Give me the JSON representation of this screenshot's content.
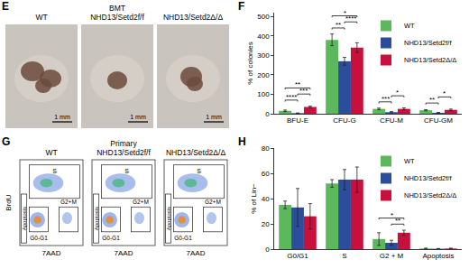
{
  "panel_E": {
    "letter": "E",
    "images": [
      {
        "header": [
          "WT"
        ],
        "scale_bar": "1 mm"
      },
      {
        "header": [
          "BMT",
          "NHD13/Setd2f/f"
        ],
        "scale_bar": "1 mm"
      },
      {
        "header": [
          "NHD13/Setd2Δ/Δ"
        ],
        "scale_bar": "1 mm"
      }
    ]
  },
  "panel_G": {
    "letter": "G",
    "y_label": "BrdU",
    "x_label": "7AAD",
    "gates": {
      "s": "S",
      "g2m": "G2+M",
      "g0g1": "G0-G1",
      "apoptosis": "Apoptosis"
    },
    "plots": [
      {
        "header": [
          "WT"
        ]
      },
      {
        "header": [
          "Primary",
          "NHD13/Setd2f/f"
        ]
      },
      {
        "header": [
          "NHD13/Setd2Δ/Δ"
        ]
      }
    ]
  },
  "chart_data": [
    {
      "panel": "F",
      "type": "bar",
      "y_label": "% of colonies",
      "categories": [
        "BFU-E",
        "CFU-G",
        "CFU-M",
        "CFU-GM"
      ],
      "ylim": [
        0,
        520
      ],
      "yticks": [
        0,
        100,
        200,
        300,
        400,
        500
      ],
      "grid": false,
      "legend": "top right",
      "series": [
        {
          "name": "WT",
          "color": "#5cb85c",
          "values": [
            15,
            380,
            25,
            18
          ],
          "errors": [
            4,
            30,
            4,
            3
          ]
        },
        {
          "name": "NHD13/Setd2f/f",
          "color": "#2b4d9b",
          "values": [
            3,
            270,
            8,
            5
          ],
          "errors": [
            1,
            20,
            3,
            2
          ]
        },
        {
          "name": "NHD13/Setd2Δ/Δ",
          "color": "#c8103c",
          "values": [
            35,
            340,
            25,
            20
          ],
          "errors": [
            4,
            25,
            5,
            4
          ]
        }
      ],
      "significance": [
        {
          "category": "BFU-E",
          "text": "****",
          "from": "WT",
          "to": "NHD13/Setd2f/f"
        },
        {
          "category": "BFU-E",
          "text": "***",
          "from": "NHD13/Setd2f/f",
          "to": "NHD13/Setd2Δ/Δ"
        },
        {
          "category": "BFU-E",
          "text": "**",
          "from": "WT",
          "to": "NHD13/Setd2Δ/Δ"
        },
        {
          "category": "CFU-G",
          "text": "**",
          "from": "WT",
          "to": "NHD13/Setd2f/f"
        },
        {
          "category": "CFU-G",
          "text": "****",
          "from": "NHD13/Setd2f/f",
          "to": "NHD13/Setd2Δ/Δ"
        },
        {
          "category": "CFU-G",
          "text": "*",
          "from": "WT",
          "to": "NHD13/Setd2Δ/Δ"
        },
        {
          "category": "CFU-M",
          "text": "***",
          "from": "WT",
          "to": "NHD13/Setd2f/f"
        },
        {
          "category": "CFU-M",
          "text": "*",
          "from": "NHD13/Setd2f/f",
          "to": "NHD13/Setd2Δ/Δ"
        },
        {
          "category": "CFU-GM",
          "text": "**",
          "from": "WT",
          "to": "NHD13/Setd2f/f"
        },
        {
          "category": "CFU-GM",
          "text": "*",
          "from": "NHD13/Setd2f/f",
          "to": "NHD13/Setd2Δ/Δ"
        }
      ]
    },
    {
      "panel": "H",
      "type": "bar",
      "y_label": "% of Lin−",
      "categories": [
        "G0/G1",
        "S",
        "G2 + M",
        "Apoptosis"
      ],
      "ylim": [
        0,
        80
      ],
      "yticks": [
        0,
        20,
        40,
        60,
        80
      ],
      "grid": false,
      "legend": "top right",
      "series": [
        {
          "name": "WT",
          "color": "#5cb85c",
          "values": [
            35,
            52,
            8,
            0.5
          ],
          "errors": [
            3,
            3,
            5,
            0.3
          ]
        },
        {
          "name": "NHD13/Setd2f/f",
          "color": "#2b4d9b",
          "values": [
            33,
            55,
            5,
            0.3
          ],
          "errors": [
            15,
            8,
            2,
            0.2
          ]
        },
        {
          "name": "NHD13/Setd2Δ/Δ",
          "color": "#c8103c",
          "values": [
            26,
            55,
            13,
            0.5
          ],
          "errors": [
            10,
            10,
            2,
            0.3
          ]
        }
      ],
      "significance": [
        {
          "category": "G2 + M",
          "text": "**",
          "from": "NHD13/Setd2f/f",
          "to": "NHD13/Setd2Δ/Δ"
        },
        {
          "category": "G2 + M",
          "text": "*",
          "from": "WT",
          "to": "NHD13/Setd2Δ/Δ"
        }
      ]
    }
  ]
}
